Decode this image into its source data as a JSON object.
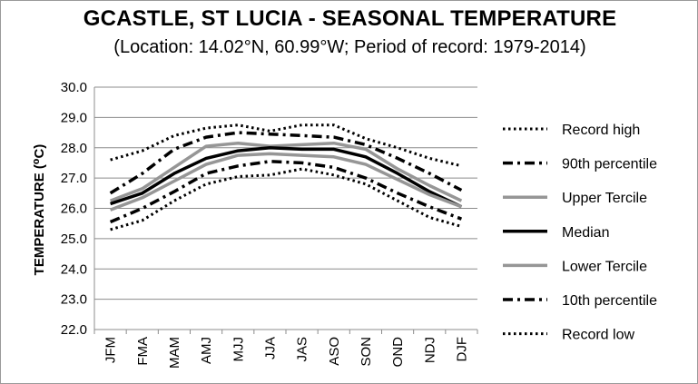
{
  "chart_data": {
    "type": "line",
    "title": "GCASTLE, ST LUCIA - SEASONAL TEMPERATURE",
    "subtitle": "(Location: 14.02°N, 60.99°W; Period of record: 1979-2014)",
    "xlabel": "",
    "ylabel": "TEMPERATURE (⁰C)",
    "ylim": [
      22.0,
      30.0
    ],
    "yticks": [
      "22.0",
      "23.0",
      "24.0",
      "25.0",
      "26.0",
      "27.0",
      "28.0",
      "29.0",
      "30.0"
    ],
    "categories": [
      "JFM",
      "FMA",
      "MAM",
      "AMJ",
      "MJJ",
      "JJA",
      "JAS",
      "ASO",
      "SON",
      "OND",
      "NDJ",
      "DJF"
    ],
    "grid": "horizontal",
    "legend_position": "right",
    "series": [
      {
        "name": "Record high",
        "style": "dotted",
        "color": "#000000",
        "width": 3,
        "values": [
          27.6,
          27.9,
          28.4,
          28.65,
          28.75,
          28.55,
          28.75,
          28.75,
          28.3,
          28.0,
          27.65,
          27.4
        ]
      },
      {
        "name": "90th percentile",
        "style": "dashdot",
        "color": "#000000",
        "width": 3.5,
        "values": [
          26.5,
          27.15,
          27.95,
          28.35,
          28.5,
          28.45,
          28.4,
          28.35,
          28.1,
          27.65,
          27.15,
          26.6
        ]
      },
      {
        "name": "Upper Tercile",
        "style": "solid",
        "color": "#969696",
        "width": 3.5,
        "values": [
          26.25,
          26.65,
          27.35,
          28.05,
          28.15,
          28.05,
          28.1,
          28.15,
          27.95,
          27.3,
          26.75,
          26.25
        ]
      },
      {
        "name": "Median",
        "style": "solid",
        "color": "#000000",
        "width": 3.5,
        "values": [
          26.15,
          26.5,
          27.15,
          27.65,
          27.9,
          28.0,
          27.95,
          27.95,
          27.7,
          27.15,
          26.55,
          26.05
        ]
      },
      {
        "name": "Lower Tercile",
        "style": "solid",
        "color": "#969696",
        "width": 3.5,
        "values": [
          25.95,
          26.35,
          26.9,
          27.45,
          27.75,
          27.8,
          27.75,
          27.7,
          27.45,
          26.95,
          26.45,
          26.05
        ]
      },
      {
        "name": "10th percentile",
        "style": "dashdot",
        "color": "#000000",
        "width": 3.5,
        "values": [
          25.55,
          26.0,
          26.55,
          27.15,
          27.4,
          27.55,
          27.5,
          27.35,
          27.0,
          26.5,
          26.05,
          25.65
        ]
      },
      {
        "name": "Record low",
        "style": "dotted",
        "color": "#000000",
        "width": 3,
        "values": [
          25.3,
          25.6,
          26.25,
          26.8,
          27.05,
          27.1,
          27.3,
          27.1,
          26.8,
          26.25,
          25.7,
          25.4
        ]
      }
    ]
  }
}
